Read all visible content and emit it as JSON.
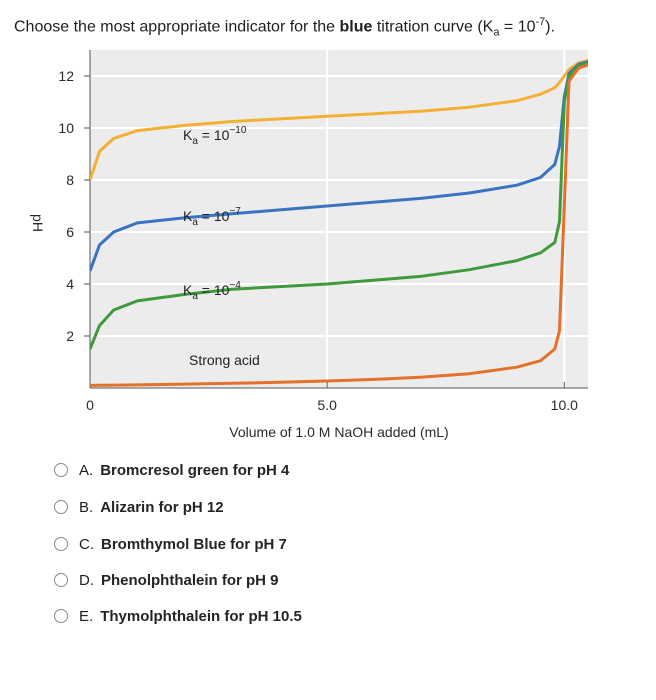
{
  "question": {
    "prefix": "Choose the most appropriate indicator for the ",
    "bold": "blue",
    "middle": " titration curve (K",
    "sub": "a",
    "eq": " = 10",
    "sup": "-7",
    "suffix": ")."
  },
  "chart_data": {
    "type": "line",
    "xlabel": "Volume of 1.0 M NaOH added (mL)",
    "ylabel": "pH",
    "xlim": [
      0,
      10.5
    ],
    "ylim": [
      0,
      13
    ],
    "x_ticks": [
      0,
      5.0,
      10.0
    ],
    "x_tick_labels": [
      "0",
      "5.0",
      "10.0"
    ],
    "y_ticks": [
      2,
      4,
      6,
      8,
      10,
      12
    ],
    "grid": true,
    "series": [
      {
        "color": "#f2b134",
        "x": [
          0,
          0.2,
          0.5,
          1,
          2,
          3,
          4,
          5,
          6,
          7,
          8,
          9,
          9.5,
          9.8,
          9.9,
          10.0,
          10.1,
          10.3,
          10.6,
          11.5
        ],
        "y": [
          8.0,
          9.1,
          9.6,
          9.9,
          10.1,
          10.25,
          10.35,
          10.45,
          10.55,
          10.65,
          10.8,
          11.05,
          11.3,
          11.55,
          11.75,
          12.0,
          12.25,
          12.5,
          12.65,
          12.75
        ]
      },
      {
        "color": "#3a74c0",
        "x": [
          0,
          0.2,
          0.5,
          1,
          2,
          3,
          4,
          5,
          6,
          7,
          8,
          9,
          9.5,
          9.8,
          9.9,
          10.0,
          10.1,
          10.3,
          10.6,
          11.5
        ],
        "y": [
          4.5,
          5.5,
          6.0,
          6.35,
          6.55,
          6.7,
          6.85,
          7.0,
          7.15,
          7.3,
          7.5,
          7.8,
          8.1,
          8.6,
          9.3,
          11.2,
          12.1,
          12.45,
          12.6,
          12.7
        ]
      },
      {
        "color": "#3f9a3c",
        "x": [
          0,
          0.2,
          0.5,
          1,
          2,
          3,
          4,
          5,
          6,
          7,
          8,
          9,
          9.5,
          9.8,
          9.9,
          10.0,
          10.1,
          10.3,
          10.6,
          11.5
        ],
        "y": [
          1.5,
          2.4,
          3.0,
          3.35,
          3.6,
          3.8,
          3.9,
          4.0,
          4.15,
          4.3,
          4.55,
          4.9,
          5.2,
          5.6,
          6.4,
          11.0,
          12.0,
          12.4,
          12.55,
          12.65
        ]
      },
      {
        "color": "#e5702a",
        "x": [
          0,
          1,
          2,
          3,
          4,
          5,
          6,
          7,
          8,
          9,
          9.5,
          9.8,
          9.9,
          10.0,
          10.1,
          10.3,
          10.6,
          11.5
        ],
        "y": [
          0.1,
          0.12,
          0.15,
          0.18,
          0.22,
          0.27,
          0.33,
          0.42,
          0.55,
          0.8,
          1.05,
          1.5,
          2.2,
          7.0,
          11.8,
          12.3,
          12.5,
          12.6
        ]
      }
    ],
    "annotations": [
      {
        "text": "K",
        "sub": "a",
        "eq": " = 10",
        "sup": "−10"
      },
      {
        "text": "K",
        "sub": "a",
        "eq": " = 10",
        "sup": "−7"
      },
      {
        "text": "K",
        "sub": "a",
        "eq": " = 10",
        "sup": "−4"
      },
      {
        "text": "Strong acid"
      }
    ]
  },
  "options": [
    {
      "letter": "A.",
      "text": "Bromcresol green for pH 4"
    },
    {
      "letter": "B.",
      "text": "Alizarin for pH 12"
    },
    {
      "letter": "C.",
      "text": "Bromthymol Blue for pH 7"
    },
    {
      "letter": "D.",
      "text": "Phenolphthalein for pH 9"
    },
    {
      "letter": "E.",
      "text": "Thymolphthalein for pH 10.5"
    }
  ]
}
